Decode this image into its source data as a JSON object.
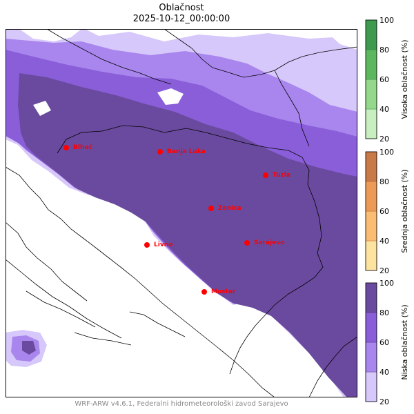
{
  "title": "Oblačnost",
  "subtitle": "2025-10-12_00:00:00",
  "footer": "WRF-ARW v4.6.1, Federalni hidrometeorološki zavod Sarajevo",
  "cities": [
    {
      "name": "Bihać"
    },
    {
      "name": "Banja Luka"
    },
    {
      "name": "Tuzla"
    },
    {
      "name": "Zenica"
    },
    {
      "name": "Livno"
    },
    {
      "name": "Sarajevo"
    },
    {
      "name": "Mostar"
    }
  ],
  "colorbars": [
    {
      "label": "Visoka oblačnost (%)",
      "ticks": [
        "20",
        "40",
        "60",
        "80",
        "100"
      ],
      "colors": [
        "#c7efc0",
        "#94d88c",
        "#5cb85f",
        "#3e9a4e"
      ],
      "outline": "#2b7a3b"
    },
    {
      "label": "Srednja oblačnost (%)",
      "ticks": [
        "20",
        "40",
        "60",
        "80",
        "100"
      ],
      "colors": [
        "#fde3a0",
        "#fbbd72",
        "#ec9a55",
        "#c87a48"
      ],
      "outline": "#a85d30"
    },
    {
      "label": "Niska oblačnost (%)",
      "ticks": [
        "20",
        "40",
        "60",
        "80",
        "100"
      ],
      "colors": [
        "#d7c8fb",
        "#a986ee",
        "#8a5ed8",
        "#6a4a9e"
      ],
      "outline": "#4a3270"
    }
  ],
  "colors": {
    "city_marker": "#ff0000",
    "city_label": "#ff0000",
    "coast": "#000000"
  }
}
